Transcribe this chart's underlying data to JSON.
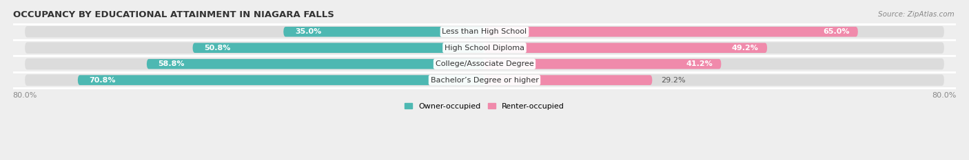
{
  "title": "OCCUPANCY BY EDUCATIONAL ATTAINMENT IN NIAGARA FALLS",
  "source": "Source: ZipAtlas.com",
  "categories": [
    "Less than High School",
    "High School Diploma",
    "College/Associate Degree",
    "Bachelor’s Degree or higher"
  ],
  "owner_values": [
    35.0,
    50.8,
    58.8,
    70.8
  ],
  "renter_values": [
    65.0,
    49.2,
    41.2,
    29.2
  ],
  "owner_color": "#4db8b2",
  "renter_color": "#f08aab",
  "background_color": "#eeeeee",
  "bar_bg_color": "#dcdcdc",
  "xlim_left": 80.0,
  "xlim_right": 80.0,
  "title_fontsize": 9.5,
  "value_fontsize": 8,
  "cat_fontsize": 8,
  "tick_fontsize": 8,
  "legend_fontsize": 8,
  "bar_height": 0.62,
  "owner_label": "Owner-occupied",
  "renter_label": "Renter-occupied"
}
